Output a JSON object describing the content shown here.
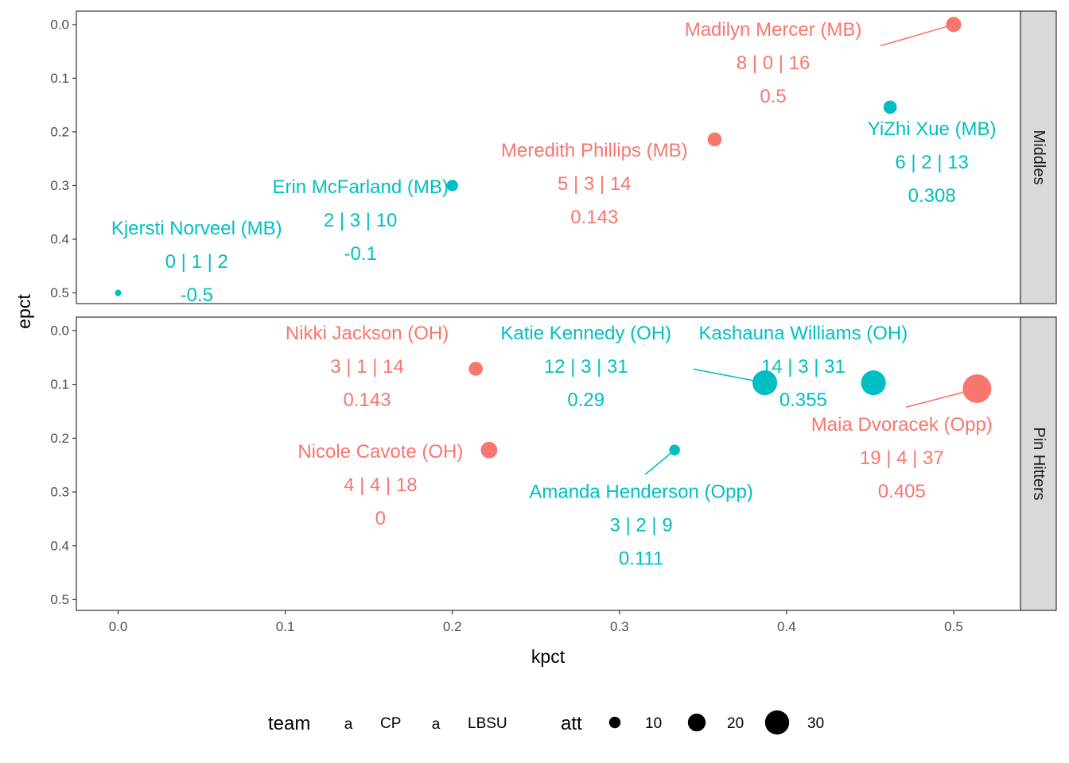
{
  "chart_data": {
    "type": "scatter",
    "xlabel": "kpct",
    "ylabel": "epct",
    "xlim": [
      -0.025,
      0.54
    ],
    "ylim": [
      -0.025,
      0.52
    ],
    "y_reversed": true,
    "x_ticks": [
      0.0,
      0.1,
      0.2,
      0.3,
      0.4,
      0.5
    ],
    "x_tick_labels": [
      "0.0",
      "0.1",
      "0.2",
      "0.3",
      "0.4",
      "0.5"
    ],
    "y_ticks": [
      0.0,
      0.1,
      0.2,
      0.3,
      0.4,
      0.5
    ],
    "y_tick_labels": [
      "0.0",
      "0.1",
      "0.2",
      "0.3",
      "0.4",
      "0.5"
    ],
    "grid": false,
    "legend_placement": "bottom",
    "colors": {
      "CP": "#F8766D",
      "LBSU": "#00BFC4"
    },
    "legend": {
      "team_title": "team",
      "team_glyph": "a",
      "team_entries": [
        "CP",
        "LBSU"
      ],
      "size_title": "att",
      "size_entries": [
        {
          "label": "10",
          "value": 10
        },
        {
          "label": "20",
          "value": 20
        },
        {
          "label": "30",
          "value": 30
        }
      ]
    },
    "facets": [
      {
        "name": "Middles",
        "points": [
          {
            "player": "Madilyn Mercer (MB)",
            "stats": "8 | 0 | 16",
            "pct": "0.5",
            "team": "CP",
            "kpct": 0.5,
            "epct": 0.0,
            "att": 16,
            "label_kpct": 0.392,
            "label_epct": 0.01,
            "leader": true
          },
          {
            "player": "YiZhi Xue (MB)",
            "stats": "6 | 2 | 13",
            "pct": "0.308",
            "team": "LBSU",
            "kpct": 0.462,
            "epct": 0.154,
            "att": 13,
            "label_kpct": 0.487,
            "label_epct": 0.195,
            "leader": false
          },
          {
            "player": "Meredith Phillips (MB)",
            "stats": "5 | 3 | 14",
            "pct": "0.143",
            "team": "CP",
            "kpct": 0.357,
            "epct": 0.214,
            "att": 14,
            "label_kpct": 0.285,
            "label_epct": 0.235,
            "leader": false
          },
          {
            "player": "Erin McFarland (MB)",
            "stats": "2 | 3 | 10",
            "pct": "-0.1",
            "team": "LBSU",
            "kpct": 0.2,
            "epct": 0.3,
            "att": 10,
            "label_kpct": 0.145,
            "label_epct": 0.303,
            "leader": false
          },
          {
            "player": "Kjersti Norveel (MB)",
            "stats": "0 | 1 | 2",
            "pct": "-0.5",
            "team": "LBSU",
            "kpct": 0.0,
            "epct": 0.5,
            "att": 2,
            "label_kpct": 0.047,
            "label_epct": 0.38,
            "leader": false
          }
        ]
      },
      {
        "name": "Pin Hitters",
        "points": [
          {
            "player": "Nikki Jackson (OH)",
            "stats": "3 | 1 | 14",
            "pct": "0.143",
            "team": "CP",
            "kpct": 0.214,
            "epct": 0.071,
            "att": 14,
            "label_kpct": 0.149,
            "label_epct": 0.005,
            "leader": false
          },
          {
            "player": "Katie Kennedy (OH)",
            "stats": "12 | 3 | 31",
            "pct": "0.29",
            "team": "LBSU",
            "kpct": 0.387,
            "epct": 0.097,
            "att": 31,
            "label_kpct": 0.28,
            "label_epct": 0.005,
            "leader": true
          },
          {
            "player": "Kashauna Williams (OH)",
            "stats": "14 | 3 | 31",
            "pct": "0.355",
            "team": "LBSU",
            "kpct": 0.452,
            "epct": 0.097,
            "att": 31,
            "label_kpct": 0.41,
            "label_epct": 0.005,
            "leader": false
          },
          {
            "player": "Maia Dvoracek (Opp)",
            "stats": "19 | 4 | 37",
            "pct": "0.405",
            "team": "CP",
            "kpct": 0.514,
            "epct": 0.108,
            "att": 37,
            "label_kpct": 0.469,
            "label_epct": 0.175,
            "leader": true
          },
          {
            "player": "Nicole Cavote (OH)",
            "stats": "4 | 4 | 18",
            "pct": "0",
            "team": "CP",
            "kpct": 0.222,
            "epct": 0.222,
            "att": 18,
            "label_kpct": 0.157,
            "label_epct": 0.225,
            "leader": false
          },
          {
            "player": "Amanda Henderson (Opp)",
            "stats": "3 | 2 | 9",
            "pct": "0.111",
            "team": "LBSU",
            "kpct": 0.333,
            "epct": 0.222,
            "att": 9,
            "label_kpct": 0.313,
            "label_epct": 0.3,
            "leader": true
          }
        ]
      }
    ]
  }
}
